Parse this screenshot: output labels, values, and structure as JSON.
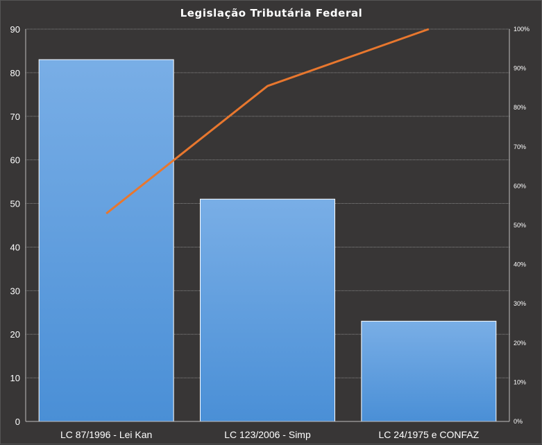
{
  "chart_data": {
    "type": "bar",
    "title": "Legislação Tributária Federal",
    "categories": [
      "LC 87/1996 - Lei Kan",
      "LC 123/2006 - Simp",
      "LC 24/1975 e CONFAZ"
    ],
    "series": [
      {
        "type": "bar",
        "values": [
          83,
          51,
          23
        ],
        "color": "#5a9ee4"
      },
      {
        "type": "line",
        "axis": "right",
        "values": [
          53,
          85.5,
          100
        ],
        "color": "#e8772e"
      }
    ],
    "ylim": [
      0,
      90
    ],
    "yticks": [
      0,
      10,
      20,
      30,
      40,
      50,
      60,
      70,
      80,
      90
    ],
    "y2lim": [
      0,
      100
    ],
    "y2ticks": [
      "0%",
      "10%",
      "20%",
      "30%",
      "40%",
      "50%",
      "60%",
      "70%",
      "80%",
      "90%",
      "100%"
    ],
    "grid": true,
    "legend": "none"
  },
  "colors": {
    "background": "#383636",
    "gridline": "#8a8a8a",
    "bar_top": "#79aee6",
    "bar_bottom": "#4a8fd6",
    "line": "#e8772e"
  }
}
